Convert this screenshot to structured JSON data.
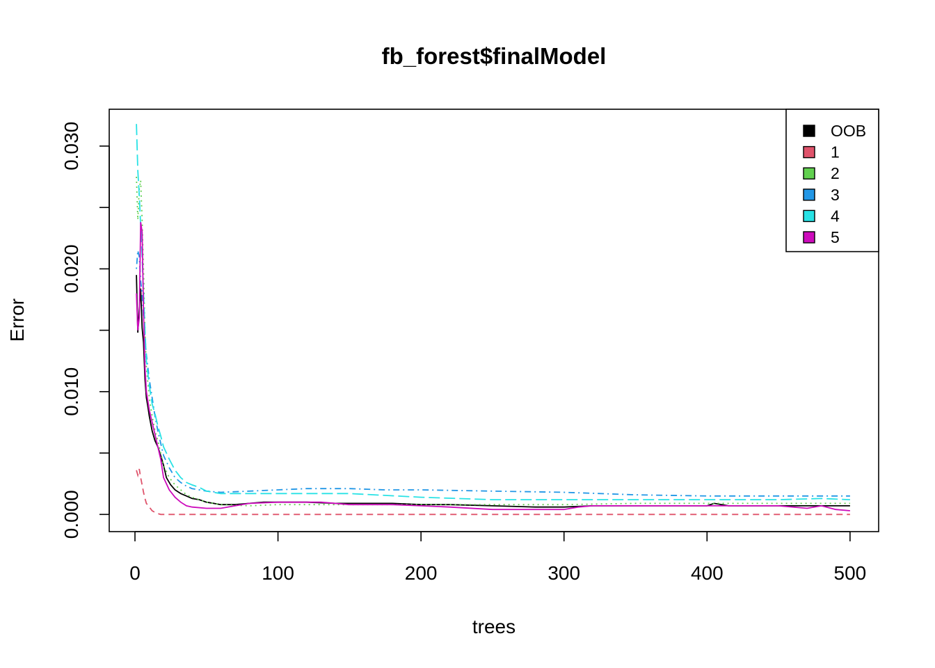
{
  "chart_data": {
    "type": "line",
    "title": "fb_forest$finalModel",
    "xlabel": "trees",
    "ylabel": "Error",
    "xlim": [
      -18,
      520
    ],
    "ylim": [
      -0.0014,
      0.033
    ],
    "x_ticks": [
      {
        "value": 0,
        "label": "0"
      },
      {
        "value": 100,
        "label": "100"
      },
      {
        "value": 200,
        "label": "200"
      },
      {
        "value": 300,
        "label": "300"
      },
      {
        "value": 400,
        "label": "400"
      },
      {
        "value": 500,
        "label": "500"
      }
    ],
    "y_ticks": [
      {
        "value": 0.0,
        "label": "0.000"
      },
      {
        "value": 0.005,
        "label": ""
      },
      {
        "value": 0.01,
        "label": "0.010"
      },
      {
        "value": 0.015,
        "label": ""
      },
      {
        "value": 0.02,
        "label": "0.020"
      },
      {
        "value": 0.025,
        "label": ""
      },
      {
        "value": 0.03,
        "label": "0.030"
      }
    ],
    "legend_position": "top-right",
    "series": [
      {
        "name": "OOB",
        "color": "#000000",
        "dash": "solid",
        "points": [
          [
            1,
            0.0195
          ],
          [
            2,
            0.0148
          ],
          [
            3,
            0.0168
          ],
          [
            4,
            0.0184
          ],
          [
            5,
            0.0152
          ],
          [
            6,
            0.014
          ],
          [
            7,
            0.011
          ],
          [
            8,
            0.0095
          ],
          [
            9,
            0.0088
          ],
          [
            10,
            0.008
          ],
          [
            12,
            0.0068
          ],
          [
            14,
            0.006
          ],
          [
            16,
            0.0055
          ],
          [
            18,
            0.0048
          ],
          [
            20,
            0.004
          ],
          [
            22,
            0.003
          ],
          [
            25,
            0.0024
          ],
          [
            28,
            0.002
          ],
          [
            32,
            0.0017
          ],
          [
            36,
            0.0015
          ],
          [
            40,
            0.0013
          ],
          [
            45,
            0.0012
          ],
          [
            50,
            0.001
          ],
          [
            55,
            0.0009
          ],
          [
            60,
            0.0008
          ],
          [
            70,
            0.0008
          ],
          [
            80,
            0.0009
          ],
          [
            90,
            0.001
          ],
          [
            100,
            0.001
          ],
          [
            120,
            0.001
          ],
          [
            140,
            0.0009
          ],
          [
            160,
            0.0009
          ],
          [
            180,
            0.0009
          ],
          [
            200,
            0.0008
          ],
          [
            220,
            0.0008
          ],
          [
            250,
            0.0007
          ],
          [
            280,
            0.0006
          ],
          [
            300,
            0.0006
          ],
          [
            320,
            0.0007
          ],
          [
            350,
            0.0007
          ],
          [
            400,
            0.0007
          ],
          [
            405,
            0.0009
          ],
          [
            415,
            0.0007
          ],
          [
            450,
            0.0007
          ],
          [
            500,
            0.0007
          ]
        ]
      },
      {
        "name": "1",
        "color": "#DF536B",
        "dash": "dashed",
        "points": [
          [
            1,
            0.0036
          ],
          [
            2,
            0.0032
          ],
          [
            3,
            0.0037
          ],
          [
            4,
            0.003
          ],
          [
            5,
            0.0024
          ],
          [
            6,
            0.0018
          ],
          [
            7,
            0.0013
          ],
          [
            8,
            0.0009
          ],
          [
            10,
            0.0006
          ],
          [
            12,
            0.0003
          ],
          [
            15,
            0.0001
          ],
          [
            18,
            0.0
          ],
          [
            20,
            0.0
          ],
          [
            100,
            0.0
          ],
          [
            200,
            0.0
          ],
          [
            300,
            0.0
          ],
          [
            400,
            0.0
          ],
          [
            500,
            0.0
          ]
        ]
      },
      {
        "name": "2",
        "color": "#61D04F",
        "dash": "dotted",
        "points": [
          [
            1,
            0.0275
          ],
          [
            2,
            0.024
          ],
          [
            3,
            0.0265
          ],
          [
            4,
            0.0272
          ],
          [
            5,
            0.024
          ],
          [
            6,
            0.02
          ],
          [
            7,
            0.015
          ],
          [
            8,
            0.012
          ],
          [
            10,
            0.0095
          ],
          [
            12,
            0.008
          ],
          [
            14,
            0.0068
          ],
          [
            16,
            0.006
          ],
          [
            18,
            0.005
          ],
          [
            20,
            0.004
          ],
          [
            24,
            0.003
          ],
          [
            28,
            0.0024
          ],
          [
            32,
            0.002
          ],
          [
            36,
            0.0016
          ],
          [
            40,
            0.0014
          ],
          [
            50,
            0.001
          ],
          [
            60,
            0.0008
          ],
          [
            80,
            0.0007
          ],
          [
            100,
            0.0008
          ],
          [
            150,
            0.0008
          ],
          [
            200,
            0.0008
          ],
          [
            250,
            0.0008
          ],
          [
            300,
            0.0008
          ],
          [
            350,
            0.0009
          ],
          [
            400,
            0.0009
          ],
          [
            450,
            0.0009
          ],
          [
            500,
            0.0009
          ]
        ]
      },
      {
        "name": "3",
        "color": "#2297E6",
        "dash": "dotdash",
        "points": [
          [
            1,
            0.02
          ],
          [
            2,
            0.0215
          ],
          [
            3,
            0.021
          ],
          [
            4,
            0.019
          ],
          [
            5,
            0.018
          ],
          [
            6,
            0.016
          ],
          [
            8,
            0.013
          ],
          [
            10,
            0.011
          ],
          [
            12,
            0.0095
          ],
          [
            14,
            0.008
          ],
          [
            16,
            0.0068
          ],
          [
            18,
            0.0058
          ],
          [
            20,
            0.0048
          ],
          [
            24,
            0.0038
          ],
          [
            28,
            0.003
          ],
          [
            32,
            0.0026
          ],
          [
            36,
            0.0023
          ],
          [
            40,
            0.0021
          ],
          [
            50,
            0.0019
          ],
          [
            60,
            0.0018
          ],
          [
            80,
            0.0019
          ],
          [
            100,
            0.002
          ],
          [
            120,
            0.0021
          ],
          [
            150,
            0.0021
          ],
          [
            175,
            0.002
          ],
          [
            200,
            0.002
          ],
          [
            250,
            0.0019
          ],
          [
            300,
            0.0018
          ],
          [
            350,
            0.0016
          ],
          [
            400,
            0.0015
          ],
          [
            450,
            0.0015
          ],
          [
            500,
            0.0015
          ]
        ]
      },
      {
        "name": "4",
        "color": "#28E2E5",
        "dash": "longdash",
        "points": [
          [
            1,
            0.0318
          ],
          [
            2,
            0.028
          ],
          [
            3,
            0.026
          ],
          [
            4,
            0.0235
          ],
          [
            5,
            0.021
          ],
          [
            6,
            0.018
          ],
          [
            7,
            0.015
          ],
          [
            8,
            0.0125
          ],
          [
            10,
            0.0105
          ],
          [
            12,
            0.009
          ],
          [
            14,
            0.0082
          ],
          [
            16,
            0.0072
          ],
          [
            18,
            0.0064
          ],
          [
            20,
            0.0055
          ],
          [
            24,
            0.0045
          ],
          [
            28,
            0.0036
          ],
          [
            32,
            0.003
          ],
          [
            36,
            0.0026
          ],
          [
            40,
            0.0024
          ],
          [
            45,
            0.0022
          ],
          [
            50,
            0.0019
          ],
          [
            60,
            0.0017
          ],
          [
            80,
            0.0017
          ],
          [
            100,
            0.0017
          ],
          [
            150,
            0.0017
          ],
          [
            200,
            0.0014
          ],
          [
            250,
            0.0012
          ],
          [
            300,
            0.0012
          ],
          [
            350,
            0.0012
          ],
          [
            400,
            0.0012
          ],
          [
            450,
            0.0012
          ],
          [
            480,
            0.0013
          ],
          [
            500,
            0.0012
          ]
        ]
      },
      {
        "name": "5",
        "color": "#CD0BBC",
        "dash": "solid",
        "points": [
          [
            1,
            0.018
          ],
          [
            2,
            0.015
          ],
          [
            3,
            0.016
          ],
          [
            4,
            0.0238
          ],
          [
            5,
            0.023
          ],
          [
            6,
            0.0165
          ],
          [
            7,
            0.012
          ],
          [
            8,
            0.01
          ],
          [
            10,
            0.0085
          ],
          [
            12,
            0.0075
          ],
          [
            14,
            0.0065
          ],
          [
            16,
            0.0055
          ],
          [
            18,
            0.0045
          ],
          [
            20,
            0.003
          ],
          [
            24,
            0.002
          ],
          [
            28,
            0.0014
          ],
          [
            32,
            0.001
          ],
          [
            36,
            0.0007
          ],
          [
            40,
            0.0006
          ],
          [
            50,
            0.0005
          ],
          [
            60,
            0.0005
          ],
          [
            70,
            0.0007
          ],
          [
            80,
            0.0009
          ],
          [
            100,
            0.001
          ],
          [
            130,
            0.001
          ],
          [
            150,
            0.0008
          ],
          [
            180,
            0.0008
          ],
          [
            200,
            0.0007
          ],
          [
            220,
            0.0006
          ],
          [
            250,
            0.0004
          ],
          [
            280,
            0.0004
          ],
          [
            300,
            0.0004
          ],
          [
            310,
            0.0006
          ],
          [
            320,
            0.0007
          ],
          [
            400,
            0.0007
          ],
          [
            450,
            0.0007
          ],
          [
            470,
            0.0005
          ],
          [
            480,
            0.0007
          ],
          [
            490,
            0.0004
          ],
          [
            500,
            0.0003
          ]
        ]
      }
    ]
  }
}
